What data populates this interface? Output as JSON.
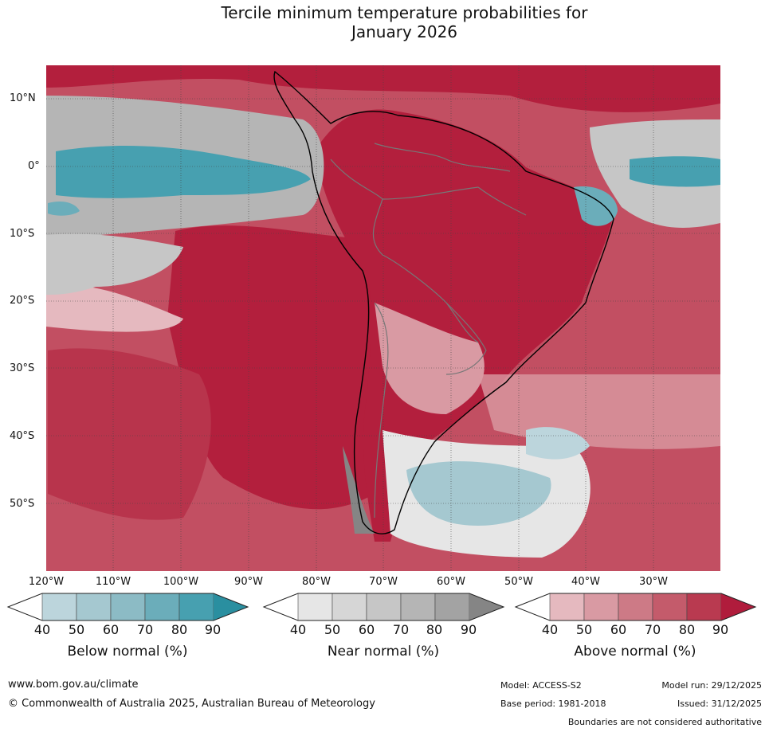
{
  "title": {
    "line1": "Tercile minimum temperature probabilities for",
    "line2": "January 2026"
  },
  "map": {
    "lat_labels": [
      "10°N",
      "0°",
      "10°S",
      "20°S",
      "30°S",
      "40°S",
      "50°S"
    ],
    "lon_labels": [
      "120°W",
      "110°W",
      "100°W",
      "90°W",
      "80°W",
      "70°W",
      "60°W",
      "50°W",
      "40°W",
      "30°W"
    ]
  },
  "colorbars": [
    {
      "name": "below",
      "title": "Below normal (%)",
      "ticks": [
        "40",
        "50",
        "60",
        "70",
        "80",
        "90"
      ],
      "colors": [
        "#ffffff",
        "#bcd5dc",
        "#a5c8d0",
        "#8cbbc5",
        "#6badba",
        "#47a0b0",
        "#2a8fa0"
      ]
    },
    {
      "name": "near",
      "title": "Near normal (%)",
      "ticks": [
        "40",
        "50",
        "60",
        "70",
        "80",
        "90"
      ],
      "colors": [
        "#ffffff",
        "#e6e6e6",
        "#d6d6d6",
        "#c6c6c6",
        "#b5b5b5",
        "#a3a3a3",
        "#858585"
      ]
    },
    {
      "name": "above",
      "title": "Above normal (%)",
      "ticks": [
        "40",
        "50",
        "60",
        "70",
        "80",
        "90"
      ],
      "colors": [
        "#ffffff",
        "#e5b9bf",
        "#d99aa3",
        "#cd7a86",
        "#c45b6b",
        "#b93a50",
        "#b01c3c"
      ]
    }
  ],
  "footer": {
    "website": "www.bom.gov.au/climate",
    "copyright": "© Commonwealth of Australia 2025, Australian Bureau of Meteorology",
    "model": "Model: ACCESS-S2",
    "model_run": "Model run: 29/12/2025",
    "base_period": "Base period: 1981-2018",
    "issued": "Issued: 31/12/2025",
    "disclaimer": "Boundaries are not considered authoritative"
  }
}
